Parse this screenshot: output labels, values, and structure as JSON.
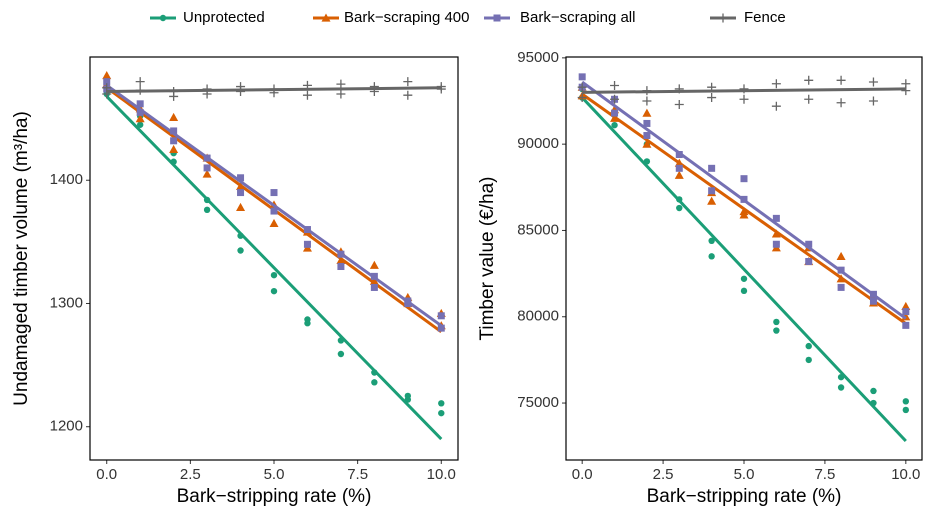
{
  "legend_position": "top",
  "chart_data": [
    {
      "type": "scatter",
      "xlabel": "Bark−stripping rate (%)",
      "ylabel": "Undamaged timber volume (m³/ha)",
      "xlim": [
        -0.5,
        10.5
      ],
      "ylim": [
        1173,
        1500
      ],
      "xticks": [
        {
          "value": 0,
          "label": "0.0"
        },
        {
          "value": 2.5,
          "label": "2.5"
        },
        {
          "value": 5,
          "label": "5.0"
        },
        {
          "value": 7.5,
          "label": "7.5"
        },
        {
          "value": 10,
          "label": "10.0"
        }
      ],
      "yticks": [
        1200,
        1300,
        1400
      ],
      "series": [
        {
          "name": "Unprotected",
          "color": "#1b9e77",
          "marker": "circle",
          "x": [
            0,
            0,
            1,
            1,
            2,
            2,
            3,
            3,
            4,
            4,
            5,
            5,
            6,
            6,
            7,
            7,
            8,
            8,
            9,
            9,
            10,
            10
          ],
          "values": [
            1475,
            1470,
            1445,
            1452,
            1415,
            1422,
            1376,
            1384,
            1343,
            1355,
            1310,
            1323,
            1284,
            1287,
            1259,
            1270,
            1236,
            1244,
            1222,
            1225,
            1211,
            1219
          ],
          "fit_x": [
            0,
            10
          ],
          "fit_values": [
            1468,
            1190
          ]
        },
        {
          "name": "Bark−scraping 400",
          "color": "#d95f02",
          "marker": "triangle",
          "x": [
            0,
            0,
            1,
            1,
            2,
            2,
            3,
            3,
            4,
            4,
            5,
            5,
            6,
            6,
            7,
            7,
            8,
            8,
            9,
            9,
            10,
            10
          ],
          "values": [
            1485,
            1478,
            1450,
            1458,
            1425,
            1451,
            1405,
            1418,
            1378,
            1395,
            1365,
            1380,
            1345,
            1358,
            1335,
            1342,
            1318,
            1331,
            1300,
            1305,
            1282,
            1292
          ],
          "fit_x": [
            0,
            10
          ],
          "fit_values": [
            1475,
            1277
          ]
        },
        {
          "name": "Bark−scraping all",
          "color": "#7570b3",
          "marker": "square",
          "x": [
            0,
            0,
            1,
            1,
            2,
            2,
            3,
            3,
            4,
            4,
            5,
            5,
            6,
            6,
            7,
            7,
            8,
            8,
            9,
            9,
            10,
            10
          ],
          "values": [
            1480,
            1474,
            1455,
            1462,
            1432,
            1440,
            1410,
            1418,
            1390,
            1402,
            1375,
            1390,
            1348,
            1360,
            1330,
            1340,
            1313,
            1322,
            1300,
            1302,
            1280,
            1290
          ],
          "fit_x": [
            0,
            10
          ],
          "fit_values": [
            1477,
            1282
          ]
        },
        {
          "name": "Fence",
          "color": "#666666",
          "marker": "plus",
          "x": [
            0,
            0,
            1,
            1,
            2,
            2,
            3,
            3,
            4,
            4,
            5,
            5,
            6,
            6,
            7,
            7,
            8,
            8,
            9,
            9,
            10,
            10
          ],
          "values": [
            1475,
            1470,
            1480,
            1473,
            1468,
            1472,
            1470,
            1474,
            1472,
            1476,
            1471,
            1474,
            1469,
            1477,
            1478,
            1470,
            1472,
            1476,
            1480,
            1469,
            1474,
            1476
          ],
          "fit_x": [
            0,
            10
          ],
          "fit_values": [
            1472,
            1475
          ]
        }
      ]
    },
    {
      "type": "scatter",
      "xlabel": "Bark−stripping rate (%)",
      "ylabel": "Timber value (€/ha)",
      "xlim": [
        -0.5,
        10.5
      ],
      "ylim": [
        71700,
        95050
      ],
      "xticks": [
        {
          "value": 0,
          "label": "0.0"
        },
        {
          "value": 2.5,
          "label": "2.5"
        },
        {
          "value": 5,
          "label": "5.0"
        },
        {
          "value": 7.5,
          "label": "7.5"
        },
        {
          "value": 10,
          "label": "10.0"
        }
      ],
      "yticks": [
        75000,
        80000,
        85000,
        90000,
        95000
      ],
      "series": [
        {
          "name": "Unprotected",
          "color": "#1b9e77",
          "marker": "circle",
          "x": [
            0,
            0,
            1,
            1,
            2,
            2,
            3,
            3,
            4,
            4,
            5,
            5,
            6,
            6,
            7,
            7,
            8,
            8,
            9,
            9,
            10,
            10
          ],
          "values": [
            93200,
            92700,
            91100,
            91700,
            89000,
            90000,
            86300,
            86800,
            83500,
            84400,
            81500,
            82200,
            79200,
            79700,
            77500,
            78300,
            75900,
            76500,
            75000,
            75700,
            74600,
            75100
          ],
          "fit_x": [
            0,
            10
          ],
          "fit_values": [
            92700,
            72800
          ]
        },
        {
          "name": "Bark−scraping 400",
          "color": "#d95f02",
          "marker": "triangle",
          "x": [
            0,
            0,
            1,
            1,
            2,
            2,
            3,
            3,
            4,
            4,
            5,
            5,
            6,
            6,
            7,
            7,
            8,
            8,
            9,
            9,
            10,
            10
          ],
          "values": [
            93300,
            92800,
            91500,
            92000,
            90000,
            91800,
            88200,
            88900,
            86700,
            87200,
            85900,
            86100,
            84000,
            84800,
            83200,
            84000,
            82200,
            83500,
            80800,
            81200,
            80000,
            80600
          ],
          "fit_x": [
            0,
            10
          ],
          "fit_values": [
            92900,
            79600
          ]
        },
        {
          "name": "Bark−scraping all",
          "color": "#7570b3",
          "marker": "square",
          "x": [
            0,
            0,
            1,
            1,
            2,
            2,
            3,
            3,
            4,
            4,
            5,
            5,
            6,
            6,
            7,
            7,
            8,
            8,
            9,
            9,
            10,
            10
          ],
          "values": [
            93900,
            93300,
            91800,
            92600,
            90500,
            91200,
            88600,
            89400,
            87300,
            88600,
            86800,
            88000,
            84200,
            85700,
            83200,
            84200,
            81700,
            82700,
            80900,
            81300,
            79500,
            80300
          ],
          "fit_x": [
            0,
            10
          ],
          "fit_values": [
            93600,
            79900
          ]
        },
        {
          "name": "Fence",
          "color": "#666666",
          "marker": "plus",
          "x": [
            0,
            0,
            1,
            1,
            2,
            2,
            3,
            3,
            4,
            4,
            5,
            5,
            6,
            6,
            7,
            7,
            8,
            8,
            9,
            9,
            10,
            10
          ],
          "values": [
            93300,
            92700,
            93400,
            92600,
            92500,
            93100,
            92300,
            93200,
            92700,
            93300,
            92600,
            93200,
            92200,
            93500,
            92600,
            93700,
            92400,
            93700,
            92500,
            93600,
            93100,
            93500
          ],
          "fit_x": [
            0,
            10
          ],
          "fit_values": [
            93000,
            93200
          ]
        }
      ]
    }
  ]
}
